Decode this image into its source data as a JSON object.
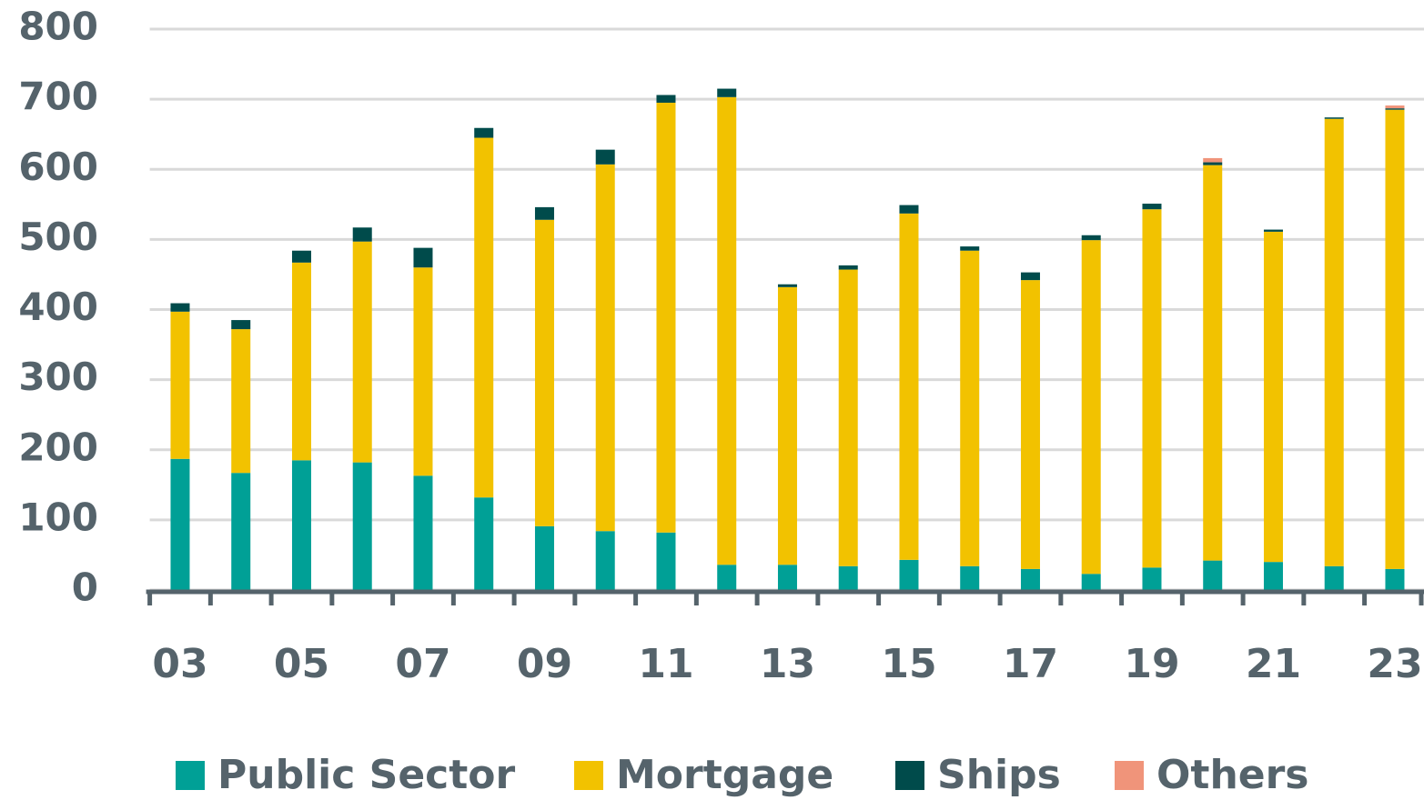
{
  "chart_data": {
    "type": "bar",
    "stacked": true,
    "categories": [
      "03",
      null,
      "05",
      null,
      "07",
      null,
      "09",
      null,
      "11",
      null,
      "13",
      null,
      "15",
      null,
      "17",
      null,
      "19",
      null,
      "21",
      null,
      "23"
    ],
    "series": [
      {
        "name": "Public Sector",
        "color": "#00a096",
        "values": [
          187,
          167,
          185,
          182,
          163,
          132,
          91,
          84,
          82,
          36,
          36,
          34,
          43,
          34,
          30,
          23,
          32,
          42,
          40,
          34,
          30
        ]
      },
      {
        "name": "Mortgage",
        "color": "#f2c200",
        "values": [
          210,
          205,
          282,
          315,
          297,
          513,
          437,
          523,
          613,
          667,
          396,
          423,
          494,
          450,
          412,
          476,
          511,
          564,
          471,
          638,
          655
        ]
      },
      {
        "name": "Ships",
        "color": "#004b4b",
        "values": [
          12,
          13,
          17,
          20,
          28,
          14,
          18,
          21,
          11,
          12,
          4,
          6,
          12,
          6,
          11,
          7,
          8,
          4,
          3,
          2,
          2
        ]
      },
      {
        "name": "Others",
        "color": "#f0947a",
        "values": [
          0,
          0,
          0,
          0,
          0,
          0,
          0,
          0,
          0,
          0,
          0,
          0,
          0,
          0,
          0,
          0,
          0,
          6,
          0,
          0,
          4
        ]
      }
    ],
    "ylim": [
      0,
      800
    ],
    "yticks": [
      0,
      100,
      200,
      300,
      400,
      500,
      600,
      700,
      800
    ],
    "grid": true,
    "legend": "bottom"
  }
}
